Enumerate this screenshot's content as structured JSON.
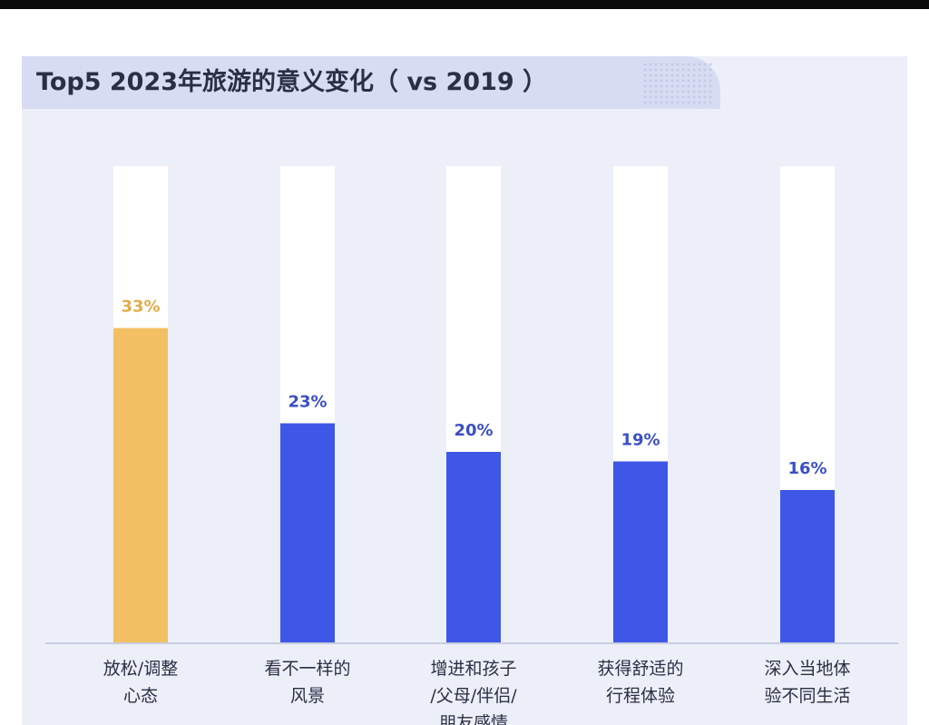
{
  "title": "Top5 2023年旅游的意义变化（ vs 2019 ）",
  "colors": {
    "highlight": "#f2c062",
    "highlight_text": "#e0ac4a",
    "bar": "#3f57e6",
    "bar_text": "#3a4fc4",
    "track": "#ffffff"
  },
  "chart_data": {
    "type": "bar",
    "title": "Top5 2023年旅游的意义变化（ vs 2019 ）",
    "categories": [
      [
        "放松/调整",
        "心态"
      ],
      [
        "看不一样的",
        "风景"
      ],
      [
        "增进和孩子",
        "/父母/伴侣/",
        "朋友感情"
      ],
      [
        "获得舒适的",
        "行程体验"
      ],
      [
        "深入当地体",
        "验不同生活"
      ]
    ],
    "values": [
      33,
      23,
      20,
      19,
      16
    ],
    "value_labels": [
      "33%",
      "23%",
      "20%",
      "19%",
      "16%"
    ],
    "highlight_index": 0,
    "ylim": [
      0,
      50
    ],
    "xlabel": "",
    "ylabel": "",
    "grid": false
  }
}
